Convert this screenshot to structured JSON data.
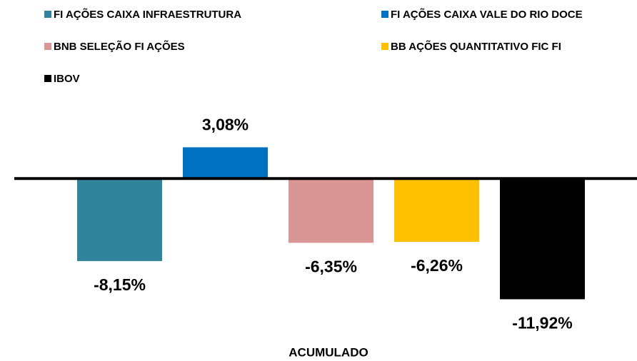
{
  "chart_data": {
    "type": "bar",
    "categories": [
      "ACUMULADO"
    ],
    "series": [
      {
        "name": "FI AÇÕES CAIXA INFRAESTRUTURA",
        "color": "#31849b",
        "values": [
          -8.15
        ],
        "value_labels": [
          "-8,15%"
        ]
      },
      {
        "name": "FI AÇÕES CAIXA VALE DO RIO DOCE",
        "color": "#0070c0",
        "values": [
          3.08
        ],
        "value_labels": [
          "3,08%"
        ]
      },
      {
        "name": "BNB SELEÇÃO FI AÇÕES",
        "color": "#da9694",
        "values": [
          -6.35
        ],
        "value_labels": [
          "-6,35%"
        ]
      },
      {
        "name": "BB AÇÕES QUANTITATIVO FIC FI",
        "color": "#ffc000",
        "values": [
          -6.26
        ],
        "value_labels": [
          "-6,26%"
        ]
      },
      {
        "name": "IBOV",
        "color": "#000000",
        "values": [
          -11.92
        ],
        "value_labels": [
          "-11,92%"
        ]
      }
    ],
    "ylim": [
      -14,
      6
    ],
    "legend": "top"
  }
}
